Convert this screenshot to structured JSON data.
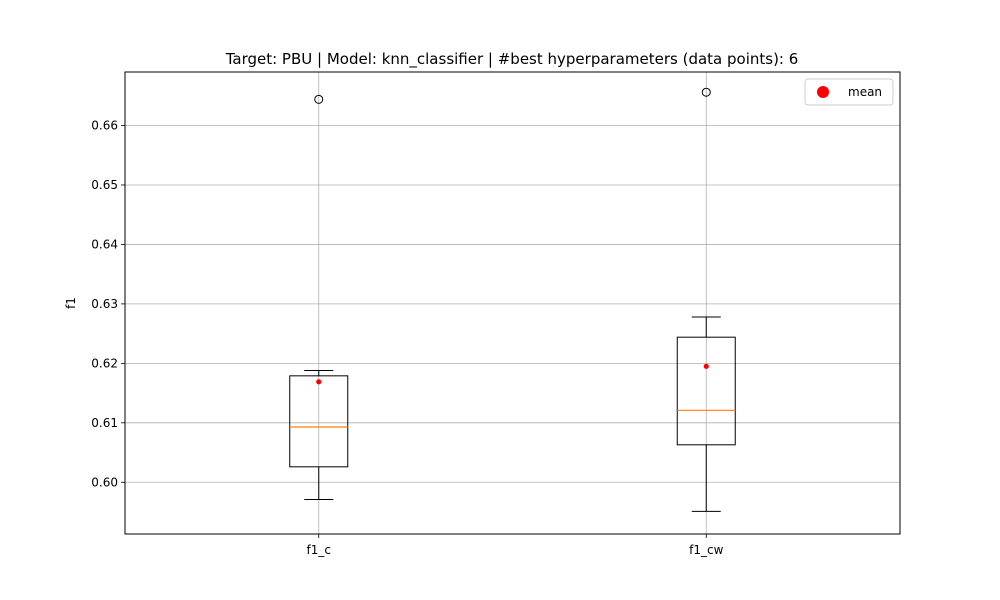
{
  "chart_data": {
    "type": "box",
    "title": "Target: PBU | Model: knn_classifier | #best hyperparameters (data points): 6",
    "xlabel": "",
    "ylabel": "f1",
    "categories": [
      "f1_c",
      "f1_cw"
    ],
    "boxes": [
      {
        "category": "f1_c",
        "whisker_low": 0.5971,
        "q1": 0.6026,
        "median": 0.6093,
        "q3": 0.6179,
        "whisker_high": 0.6188,
        "mean": 0.6169,
        "outliers": [
          0.6644
        ]
      },
      {
        "category": "f1_cw",
        "whisker_low": 0.5951,
        "q1": 0.6063,
        "median": 0.6121,
        "q3": 0.6244,
        "whisker_high": 0.6278,
        "mean": 0.6195,
        "outliers": [
          0.6656
        ]
      }
    ],
    "ylim": [
      0.5913,
      0.669
    ],
    "yticks": [
      "0.60",
      "0.61",
      "0.62",
      "0.63",
      "0.64",
      "0.65",
      "0.66"
    ],
    "grid": true,
    "legend": {
      "label": "mean",
      "placement": "top-right"
    },
    "colors": {
      "box": "#000000",
      "median": "#ff7f0e",
      "mean": "#ff0000",
      "grid": "#b0b0b0",
      "outlier_edge": "#000000"
    }
  }
}
